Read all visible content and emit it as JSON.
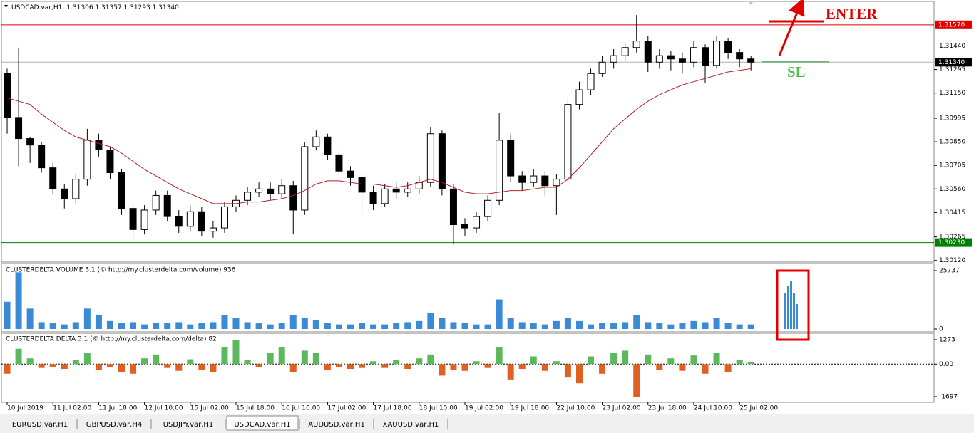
{
  "header": {
    "symbol": "USDCAD.var,H1",
    "quote": "1.31306 1.31357 1.31293 1.31340"
  },
  "annotations": {
    "enter": "ENTER",
    "sl": "SL"
  },
  "tabs": [
    "EURUSD.var,H1",
    "GBPUSD.var,H4",
    "USDJPY.var,H1",
    "USDCAD.var,H1",
    "AUDUSD.var,H1",
    "XAUUSD.var,H1"
  ],
  "active_tab": 3,
  "chart_data": [
    {
      "type": "candlestick",
      "open": [
        1.3127,
        1.31,
        1.3087,
        1.3083,
        1.3069,
        1.3056,
        1.305,
        1.3062,
        1.3086,
        1.308,
        1.3066,
        1.3044,
        1.3031,
        1.3043,
        1.3052,
        1.3039,
        1.3033,
        1.3042,
        1.303,
        1.3032,
        1.3045,
        1.3049,
        1.3054,
        1.3056,
        1.3053,
        1.3058,
        1.3043,
        1.3082,
        1.3088,
        1.3077,
        1.3067,
        1.3063,
        1.3054,
        1.3047,
        1.3056,
        1.3054,
        1.3056,
        1.306,
        1.309,
        1.3056,
        1.3034,
        1.3032,
        1.3039,
        1.3049,
        1.3086,
        1.3064,
        1.306,
        1.3064,
        1.3058,
        1.3062,
        1.3108,
        1.3117,
        1.3127,
        1.3134,
        1.3138,
        1.3143,
        1.3147,
        1.3134,
        1.3138,
        1.3136,
        1.3134,
        1.3143,
        1.3132,
        1.3147,
        1.314,
        1.3136
      ],
      "high": [
        1.313,
        1.3143,
        1.3088,
        1.3085,
        1.3072,
        1.3059,
        1.3065,
        1.3093,
        1.309,
        1.3082,
        1.3068,
        1.3047,
        1.3046,
        1.3055,
        1.3055,
        1.3043,
        1.3046,
        1.3045,
        1.3036,
        1.3048,
        1.3052,
        1.3057,
        1.306,
        1.306,
        1.3062,
        1.3061,
        1.3085,
        1.3092,
        1.309,
        1.308,
        1.307,
        1.3066,
        1.3058,
        1.3059,
        1.306,
        1.306,
        1.3064,
        1.3094,
        1.3092,
        1.3059,
        1.3038,
        1.3042,
        1.3052,
        1.3103,
        1.309,
        1.3067,
        1.3068,
        1.3067,
        1.3065,
        1.3112,
        1.3122,
        1.313,
        1.3138,
        1.3142,
        1.3146,
        1.3163,
        1.315,
        1.3142,
        1.3141,
        1.314,
        1.3147,
        1.3145,
        1.315,
        1.3149,
        1.3142,
        1.3138
      ],
      "low": [
        1.309,
        1.307,
        1.3072,
        1.3066,
        1.3053,
        1.3044,
        1.3047,
        1.3058,
        1.3076,
        1.3062,
        1.304,
        1.3025,
        1.3028,
        1.304,
        1.3036,
        1.3029,
        1.303,
        1.3027,
        1.3026,
        1.3029,
        1.3042,
        1.3046,
        1.3051,
        1.3049,
        1.305,
        1.3028,
        1.304,
        1.308,
        1.3074,
        1.3063,
        1.3058,
        1.3041,
        1.3043,
        1.3045,
        1.305,
        1.3051,
        1.3053,
        1.3057,
        1.3052,
        1.3022,
        1.3027,
        1.3029,
        1.3036,
        1.3046,
        1.306,
        1.3055,
        1.3057,
        1.3052,
        1.304,
        1.306,
        1.3105,
        1.3114,
        1.3125,
        1.313,
        1.3135,
        1.314,
        1.3128,
        1.313,
        1.3129,
        1.3127,
        1.3131,
        1.3121,
        1.313,
        1.3136,
        1.3131,
        1.3129
      ],
      "close": [
        1.31,
        1.3087,
        1.3083,
        1.3069,
        1.3056,
        1.305,
        1.3062,
        1.3086,
        1.308,
        1.3066,
        1.3044,
        1.3031,
        1.3043,
        1.3052,
        1.3039,
        1.3033,
        1.3042,
        1.303,
        1.3032,
        1.3045,
        1.3049,
        1.3054,
        1.3056,
        1.3053,
        1.3058,
        1.3043,
        1.3082,
        1.3088,
        1.3077,
        1.3067,
        1.3063,
        1.3054,
        1.3047,
        1.3056,
        1.3054,
        1.3056,
        1.306,
        1.309,
        1.3056,
        1.3034,
        1.3032,
        1.3039,
        1.3049,
        1.3086,
        1.3064,
        1.306,
        1.3064,
        1.3058,
        1.3062,
        1.3108,
        1.3117,
        1.3127,
        1.3134,
        1.3138,
        1.3143,
        1.3147,
        1.3134,
        1.3138,
        1.3136,
        1.3134,
        1.3143,
        1.3132,
        1.3147,
        1.314,
        1.3136,
        1.3134
      ],
      "up_color": "#ffffff",
      "down_color": "#000000",
      "wick_color": "#000000",
      "ma": {
        "color": "#b22222",
        "values": [
          1.3112,
          1.311,
          1.3108,
          1.3102,
          1.3097,
          1.3092,
          1.3088,
          1.3086,
          1.3084,
          1.3082,
          1.3078,
          1.3073,
          1.3068,
          1.3064,
          1.306,
          1.3056,
          1.3053,
          1.305,
          1.3047,
          1.3047,
          1.3047,
          1.3048,
          1.3048,
          1.3049,
          1.305,
          1.3052,
          1.3055,
          1.3059,
          1.3061,
          1.3061,
          1.306,
          1.3059,
          1.3059,
          1.3058,
          1.3057,
          1.3058,
          1.306,
          1.3062,
          1.306,
          1.3057,
          1.3054,
          1.3053,
          1.3053,
          1.3054,
          1.3055,
          1.3055,
          1.3056,
          1.3057,
          1.3057,
          1.3062,
          1.3069,
          1.3077,
          1.3085,
          1.3093,
          1.3099,
          1.3105,
          1.311,
          1.3114,
          1.3117,
          1.312,
          1.3122,
          1.3124,
          1.3126,
          1.3128,
          1.3129,
          1.313
        ]
      },
      "levels": [
        {
          "value": 1.3157,
          "label": "1.31570",
          "color": "#e00000"
        },
        {
          "value": 1.3134,
          "label": "1.31340",
          "color": "#000000"
        },
        {
          "value": 1.3023,
          "label": "1.30230",
          "color": "#008000"
        }
      ],
      "ylim": [
        1.3011,
        1.3167
      ],
      "yticks": [
        {
          "value": 1.3144,
          "label": "1.31440"
        },
        {
          "value": 1.31295,
          "label": "1.31295"
        },
        {
          "value": 1.3115,
          "label": "1.31150"
        },
        {
          "value": 1.30995,
          "label": "1.30995"
        },
        {
          "value": 1.3085,
          "label": "1.30850"
        },
        {
          "value": 1.30705,
          "label": "1.30705"
        },
        {
          "value": 1.3056,
          "label": "1.30560"
        },
        {
          "value": 1.30415,
          "label": "1.30415"
        },
        {
          "value": 1.30265,
          "label": "1.30265"
        },
        {
          "value": 1.3012,
          "label": "1.30120"
        }
      ],
      "xlim": [
        -0.5,
        81
      ],
      "xticks": [
        {
          "value": 0,
          "label": "10 Jul 2019"
        },
        {
          "value": 4,
          "label": "11 Jul 02:00"
        },
        {
          "value": 8,
          "label": "11 Jul 18:00"
        },
        {
          "value": 12,
          "label": "12 Jul 10:00"
        },
        {
          "value": 16,
          "label": "15 Jul 02:00"
        },
        {
          "value": 20,
          "label": "15 Jul 18:00"
        },
        {
          "value": 24,
          "label": "16 Jul 10:00"
        },
        {
          "value": 28,
          "label": "17 Jul 02:00"
        },
        {
          "value": 32,
          "label": "17 Jul 18:00"
        },
        {
          "value": 36,
          "label": "18 Jul 10:00"
        },
        {
          "value": 40,
          "label": "19 Jul 02:00"
        },
        {
          "value": 44,
          "label": "19 Jul 18:00"
        },
        {
          "value": 48,
          "label": "22 Jul 10:00"
        },
        {
          "value": 52,
          "label": "23 Jul 02:00"
        },
        {
          "value": 56,
          "label": "23 Jul 18:00"
        },
        {
          "value": 60,
          "label": "24 Jul 10:00"
        },
        {
          "value": 64,
          "label": "25 Jul 02:00"
        }
      ]
    },
    {
      "type": "bar",
      "title": "CLUSTERDELTA VOLUME 3.1 (© http://my.clusterdelta.com/volume) 936",
      "values": [
        12000,
        25000,
        9000,
        3000,
        2500,
        2000,
        3000,
        9000,
        6000,
        3500,
        2500,
        3000,
        2000,
        2500,
        2500,
        3000,
        2000,
        2500,
        3000,
        6000,
        5000,
        3000,
        2500,
        2000,
        2500,
        6000,
        5000,
        4000,
        2500,
        2000,
        2000,
        2500,
        2000,
        2000,
        2500,
        3000,
        3500,
        7000,
        5000,
        3000,
        2500,
        2000,
        2000,
        13000,
        5000,
        3000,
        2500,
        2000,
        3500,
        5000,
        3500,
        2000,
        2500,
        2500,
        3000,
        6000,
        3000,
        2500,
        2000,
        2500,
        3500,
        3000,
        5000,
        2500,
        2000,
        2000
      ],
      "highlight_values": [
        16000,
        19000,
        21000,
        16000,
        11000
      ],
      "color": "#3a8ad6",
      "ylim": [
        0,
        25737
      ],
      "yticks": [
        0,
        25737
      ]
    },
    {
      "type": "bar",
      "title": "CLUSTERDELTA DELTA 3.1 (© http://my.clusterdelta.com/delta) 82",
      "values": [
        -500,
        800,
        300,
        -200,
        -150,
        -250,
        200,
        600,
        -300,
        -150,
        -400,
        -500,
        300,
        500,
        -200,
        -350,
        250,
        -300,
        -400,
        900,
        1273,
        200,
        -150,
        600,
        900,
        -400,
        700,
        600,
        -300,
        -150,
        -250,
        -200,
        150,
        -200,
        200,
        -250,
        300,
        500,
        -600,
        -300,
        -350,
        150,
        -200,
        900,
        -800,
        -250,
        400,
        -350,
        150,
        -700,
        -1000,
        400,
        -500,
        600,
        700,
        -1697,
        500,
        -300,
        300,
        -350,
        450,
        -500,
        600,
        -400,
        200,
        100
      ],
      "up_color": "#5cb85c",
      "down_color": "#e06020",
      "zero_line": true,
      "ylim": [
        -1697,
        1273
      ],
      "yticks": [
        -1697,
        {
          "value": 0,
          "label": "0.00"
        },
        1273
      ]
    }
  ]
}
